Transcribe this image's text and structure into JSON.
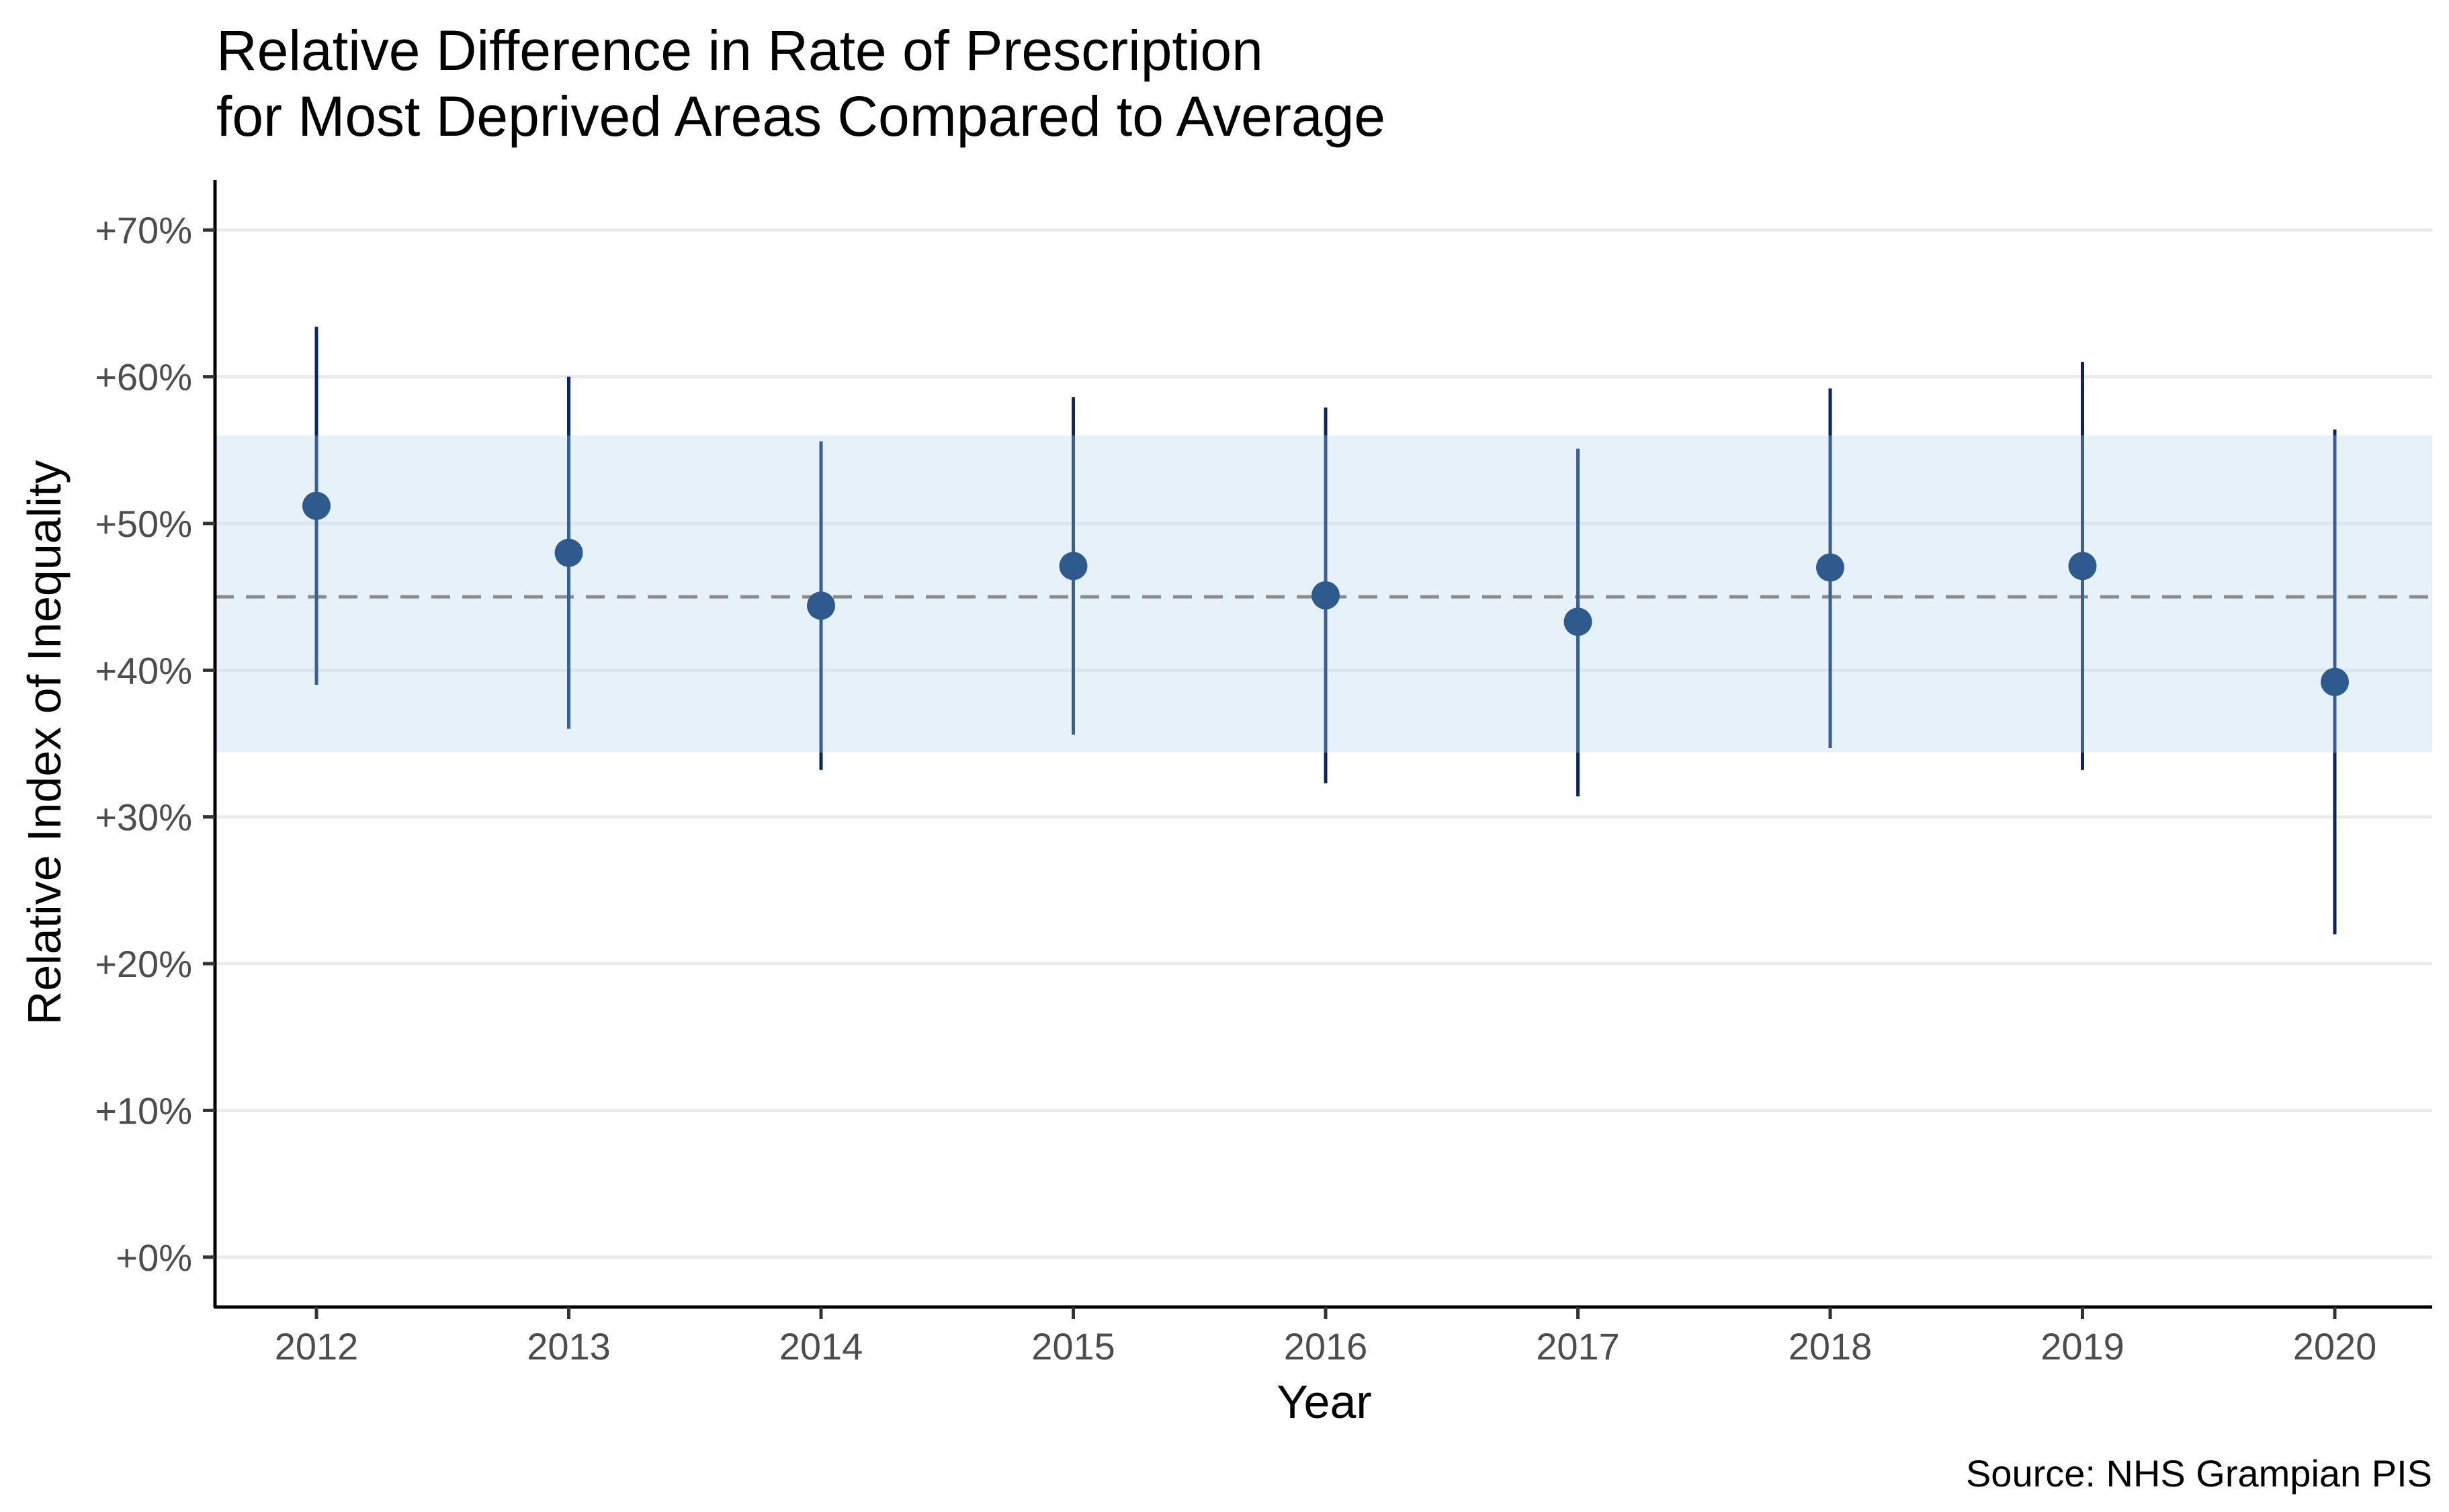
{
  "chart_data": {
    "type": "scatter",
    "title": "Relative Difference in Rate of Prescription",
    "subtitle": "for Most Deprived Areas Compared to Average",
    "xlabel": "Year",
    "ylabel": "Relative Index of Inequality",
    "caption": "Source: NHS Grampian PIS",
    "x": [
      "2012",
      "2013",
      "2014",
      "2015",
      "2016",
      "2017",
      "2018",
      "2019",
      "2020"
    ],
    "y": [
      51.2,
      48.0,
      44.4,
      47.1,
      45.1,
      43.3,
      47.0,
      47.1,
      39.2
    ],
    "lower": [
      39.0,
      36.0,
      33.2,
      35.6,
      32.3,
      31.4,
      34.7,
      33.2,
      22.0
    ],
    "upper": [
      63.4,
      60.0,
      55.6,
      58.6,
      57.9,
      55.1,
      59.2,
      61.0,
      56.4
    ],
    "reference_line": 45.0,
    "reference_band": [
      34.4,
      56.0
    ],
    "ylim": [
      -3.4,
      73.4
    ],
    "yticks": [
      0,
      10,
      20,
      30,
      40,
      50,
      60,
      70
    ],
    "ytick_labels": [
      "+0%",
      "+10%",
      "+20%",
      "+30%",
      "+40%",
      "+50%",
      "+60%",
      "+70%"
    ],
    "grid": "horizontal major",
    "legend": "none",
    "colors": {
      "point": "#2e5a8e",
      "interval_inside_band": "#3a5f91",
      "interval_outside_band": "#0b2560",
      "band": "#e7f1f9",
      "reference_line": "#8c8c8c",
      "gridline": "#ebebeb",
      "axis": "#000000"
    }
  }
}
